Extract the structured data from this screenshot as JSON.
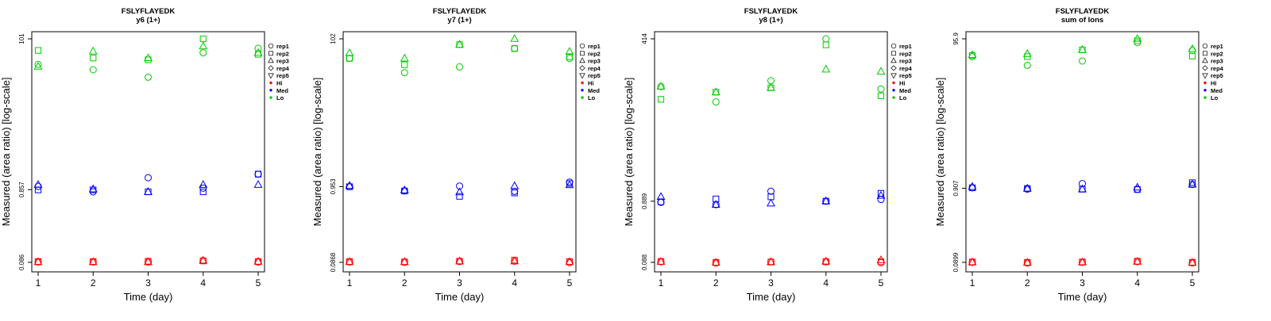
{
  "chart_data": [
    {
      "type": "scatter",
      "title": "FSLYFLAYEDK",
      "subtitle": "y6 (1+)",
      "xlabel": "Time (day)",
      "ylabel": "Measured (area ratio) [log-scale]",
      "log_y": true,
      "ylim": [
        0.086,
        101
      ],
      "yticks": [
        "0.086",
        "0.857",
        "101"
      ],
      "xticks": [
        1,
        2,
        3,
        4,
        5
      ],
      "legend": {
        "placement": "right",
        "entries": [
          {
            "label": "rep1",
            "marker": "circle"
          },
          {
            "label": "rep2",
            "marker": "square"
          },
          {
            "label": "rep3",
            "marker": "triangle-up"
          },
          {
            "label": "rep4",
            "marker": "diamond"
          },
          {
            "label": "rep5",
            "marker": "triangle-down"
          },
          {
            "label": "Hi",
            "color": "#ff0000"
          },
          {
            "label": "Med",
            "color": "#0000ff"
          },
          {
            "label": "Lo",
            "color": "#00cc00"
          }
        ]
      },
      "series": [
        {
          "level": "Hi",
          "color": "#ff0000",
          "points": [
            {
              "rep": "rep1",
              "x": [
                1,
                2,
                3,
                4,
                5
              ],
              "y": [
                0.087,
                0.087,
                0.087,
                0.091,
                0.087
              ]
            },
            {
              "rep": "rep2",
              "x": [
                1,
                2,
                3,
                4,
                5
              ],
              "y": [
                0.088,
                0.088,
                0.089,
                0.09,
                0.088
              ]
            },
            {
              "rep": "rep3",
              "x": [
                1,
                2,
                3,
                4,
                5
              ],
              "y": [
                0.087,
                0.087,
                0.087,
                0.091,
                0.088
              ]
            }
          ]
        },
        {
          "level": "Med",
          "color": "#0000ff",
          "points": [
            {
              "rep": "rep1",
              "x": [
                1,
                2,
                3,
                4,
                5
              ],
              "y": [
                0.95,
                0.8,
                1.25,
                0.9,
                1.4
              ]
            },
            {
              "rep": "rep2",
              "x": [
                1,
                2,
                3,
                4,
                5
              ],
              "y": [
                0.85,
                0.85,
                0.8,
                0.8,
                1.4
              ]
            },
            {
              "rep": "rep3",
              "x": [
                1,
                2,
                3,
                4,
                5
              ],
              "y": [
                1.0,
                0.87,
                0.8,
                1.0,
                1.0
              ]
            }
          ]
        },
        {
          "level": "Lo",
          "color": "#00cc00",
          "points": [
            {
              "rep": "rep1",
              "x": [
                1,
                2,
                3,
                4,
                5
              ],
              "y": [
                45,
                38,
                30,
                65,
                75
              ]
            },
            {
              "rep": "rep2",
              "x": [
                1,
                2,
                3,
                4,
                5
              ],
              "y": [
                70,
                55,
                52,
                101,
                62
              ]
            },
            {
              "rep": "rep3",
              "x": [
                1,
                2,
                3,
                4,
                5
              ],
              "y": [
                42,
                68,
                55,
                80,
                65
              ]
            }
          ]
        }
      ]
    },
    {
      "type": "scatter",
      "title": "FSLYFLAYEDK",
      "subtitle": "y7 (1+)",
      "xlabel": "Time (day)",
      "ylabel": "Measured (area ratio) [log-scale]",
      "log_y": true,
      "ylim": [
        0.0868,
        102
      ],
      "yticks": [
        "0.0868",
        "0.953",
        "102"
      ],
      "xticks": [
        1,
        2,
        3,
        4,
        5
      ],
      "legend": {
        "placement": "right",
        "entries": [
          {
            "label": "rep1",
            "marker": "circle"
          },
          {
            "label": "rep2",
            "marker": "square"
          },
          {
            "label": "rep3",
            "marker": "triangle-up"
          },
          {
            "label": "rep4",
            "marker": "diamond"
          },
          {
            "label": "rep5",
            "marker": "triangle-down"
          },
          {
            "label": "Hi",
            "color": "#ff0000"
          },
          {
            "label": "Med",
            "color": "#0000ff"
          },
          {
            "label": "Lo",
            "color": "#00cc00"
          }
        ]
      },
      "series": [
        {
          "level": "Hi",
          "color": "#ff0000",
          "points": [
            {
              "rep": "rep1",
              "x": [
                1,
                2,
                3,
                4,
                5
              ],
              "y": [
                0.088,
                0.087,
                0.089,
                0.09,
                0.086
              ]
            },
            {
              "rep": "rep2",
              "x": [
                1,
                2,
                3,
                4,
                5
              ],
              "y": [
                0.089,
                0.088,
                0.09,
                0.093,
                0.089
              ]
            },
            {
              "rep": "rep3",
              "x": [
                1,
                2,
                3,
                4,
                5
              ],
              "y": [
                0.088,
                0.088,
                0.09,
                0.09,
                0.088
              ]
            }
          ]
        },
        {
          "level": "Med",
          "color": "#0000ff",
          "points": [
            {
              "rep": "rep1",
              "x": [
                1,
                2,
                3,
                4,
                5
              ],
              "y": [
                0.95,
                0.83,
                0.97,
                0.82,
                1.1
              ]
            },
            {
              "rep": "rep2",
              "x": [
                1,
                2,
                3,
                4,
                5
              ],
              "y": [
                0.95,
                0.83,
                0.7,
                0.78,
                1.05
              ]
            },
            {
              "rep": "rep3",
              "x": [
                1,
                2,
                3,
                4,
                5
              ],
              "y": [
                0.98,
                0.85,
                0.8,
                0.97,
                1.0
              ]
            }
          ]
        },
        {
          "level": "Lo",
          "color": "#00cc00",
          "points": [
            {
              "rep": "rep1",
              "x": [
                1,
                2,
                3,
                4,
                5
              ],
              "y": [
                55,
                35,
                42,
                75,
                55
              ]
            },
            {
              "rep": "rep2",
              "x": [
                1,
                2,
                3,
                4,
                5
              ],
              "y": [
                55,
                45,
                85,
                75,
                58
              ]
            },
            {
              "rep": "rep3",
              "x": [
                1,
                2,
                3,
                4,
                5
              ],
              "y": [
                65,
                55,
                85,
                102,
                68
              ]
            }
          ]
        }
      ]
    },
    {
      "type": "scatter",
      "title": "FSLYFLAYEDK",
      "subtitle": "y8 (1+)",
      "xlabel": "Time (day)",
      "ylabel": "Measured (area ratio) [log-scale]",
      "log_y": true,
      "ylim": [
        0.088,
        414
      ],
      "yticks": [
        "0.088",
        "0.889",
        "414"
      ],
      "xticks": [
        1,
        2,
        3,
        4,
        5
      ],
      "legend": {
        "placement": "right",
        "entries": [
          {
            "label": "rep1",
            "marker": "circle"
          },
          {
            "label": "rep2",
            "marker": "square"
          },
          {
            "label": "rep3",
            "marker": "triangle-up"
          },
          {
            "label": "rep4",
            "marker": "diamond"
          },
          {
            "label": "rep5",
            "marker": "triangle-down"
          },
          {
            "label": "Hi",
            "color": "#ff0000"
          },
          {
            "label": "Med",
            "color": "#0000ff"
          },
          {
            "label": "Lo",
            "color": "#00cc00"
          }
        ]
      },
      "series": [
        {
          "level": "Hi",
          "color": "#ff0000",
          "points": [
            {
              "rep": "rep1",
              "x": [
                1,
                2,
                3,
                4,
                5
              ],
              "y": [
                0.09,
                0.086,
                0.09,
                0.09,
                0.087
              ]
            },
            {
              "rep": "rep2",
              "x": [
                1,
                2,
                3,
                4,
                5
              ],
              "y": [
                0.091,
                0.088,
                0.089,
                0.09,
                0.09
              ]
            },
            {
              "rep": "rep3",
              "x": [
                1,
                2,
                3,
                4,
                5
              ],
              "y": [
                0.09,
                0.087,
                0.089,
                0.091,
                0.096
              ]
            }
          ]
        },
        {
          "level": "Med",
          "color": "#0000ff",
          "points": [
            {
              "rep": "rep1",
              "x": [
                1,
                2,
                3,
                4,
                5
              ],
              "y": [
                0.85,
                0.78,
                1.3,
                0.89,
                0.95
              ]
            },
            {
              "rep": "rep2",
              "x": [
                1,
                2,
                3,
                4,
                5
              ],
              "y": [
                0.87,
                0.97,
                1.05,
                0.89,
                1.2
              ]
            },
            {
              "rep": "rep3",
              "x": [
                1,
                2,
                3,
                4,
                5
              ],
              "y": [
                1.05,
                0.78,
                0.82,
                0.89,
                1.1
              ]
            }
          ]
        },
        {
          "level": "Lo",
          "color": "#00cc00",
          "points": [
            {
              "rep": "rep1",
              "x": [
                1,
                2,
                3,
                4,
                5
              ],
              "y": [
                68,
                38,
                85,
                414,
                62
              ]
            },
            {
              "rep": "rep2",
              "x": [
                1,
                2,
                3,
                4,
                5
              ],
              "y": [
                42,
                55,
                65,
                330,
                48
              ]
            },
            {
              "rep": "rep3",
              "x": [
                1,
                2,
                3,
                4,
                5
              ],
              "y": [
                68,
                55,
                65,
                130,
                120
              ]
            }
          ]
        }
      ]
    },
    {
      "type": "scatter",
      "title": "FSLYFLAYEDK",
      "subtitle": "sum of Ions",
      "xlabel": "Time (day)",
      "ylabel": "Measured (area ratio) [log-scale]",
      "log_y": true,
      "ylim": [
        0.0899,
        95.9
      ],
      "yticks": [
        "0.0899",
        "0.907",
        "95.9"
      ],
      "xticks": [
        1,
        2,
        3,
        4,
        5
      ],
      "legend": {
        "placement": "right",
        "entries": [
          {
            "label": "rep1",
            "marker": "circle"
          },
          {
            "label": "rep2",
            "marker": "square"
          },
          {
            "label": "rep3",
            "marker": "triangle-up"
          },
          {
            "label": "rep4",
            "marker": "diamond"
          },
          {
            "label": "rep5",
            "marker": "triangle-down"
          },
          {
            "label": "Hi",
            "color": "#ff0000"
          },
          {
            "label": "Med",
            "color": "#0000ff"
          },
          {
            "label": "Lo",
            "color": "#00cc00"
          }
        ]
      },
      "series": [
        {
          "level": "Hi",
          "color": "#ff0000",
          "points": [
            {
              "rep": "rep1",
              "x": [
                1,
                2,
                3,
                4,
                5
              ],
              "y": [
                0.09,
                0.088,
                0.09,
                0.092,
                0.088
              ]
            },
            {
              "rep": "rep2",
              "x": [
                1,
                2,
                3,
                4,
                5
              ],
              "y": [
                0.091,
                0.09,
                0.091,
                0.093,
                0.09
              ]
            },
            {
              "rep": "rep3",
              "x": [
                1,
                2,
                3,
                4,
                5
              ],
              "y": [
                0.09,
                0.089,
                0.09,
                0.092,
                0.089
              ]
            }
          ]
        },
        {
          "level": "Med",
          "color": "#0000ff",
          "points": [
            {
              "rep": "rep1",
              "x": [
                1,
                2,
                3,
                4,
                5
              ],
              "y": [
                0.92,
                0.88,
                1.05,
                0.88,
                1.02
              ]
            },
            {
              "rep": "rep2",
              "x": [
                1,
                2,
                3,
                4,
                5
              ],
              "y": [
                0.92,
                0.9,
                0.88,
                0.87,
                1.08
              ]
            },
            {
              "rep": "rep3",
              "x": [
                1,
                2,
                3,
                4,
                5
              ],
              "y": [
                0.95,
                0.9,
                0.88,
                0.93,
                1.02
              ]
            }
          ]
        },
        {
          "level": "Lo",
          "color": "#00cc00",
          "points": [
            {
              "rep": "rep1",
              "x": [
                1,
                2,
                3,
                4,
                5
              ],
              "y": [
                55,
                42,
                48,
                85,
                67
              ]
            },
            {
              "rep": "rep2",
              "x": [
                1,
                2,
                3,
                4,
                5
              ],
              "y": [
                57,
                55,
                68,
                90,
                56
              ]
            },
            {
              "rep": "rep3",
              "x": [
                1,
                2,
                3,
                4,
                5
              ],
              "y": [
                58,
                60,
                68,
                95.9,
                70
              ]
            }
          ]
        }
      ]
    }
  ]
}
